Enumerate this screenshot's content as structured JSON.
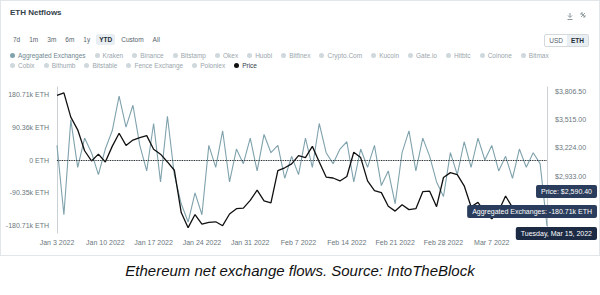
{
  "chart_data": {
    "type": "line",
    "title": "ETH Netflows",
    "range_buttons": [
      "7d",
      "1m",
      "3m",
      "6m",
      "1y",
      "YTD",
      "Custom",
      "All"
    ],
    "range_active": "YTD",
    "units": [
      "USD",
      "ETH"
    ],
    "unit_active": "ETH",
    "other_exchanges": [
      "Kraken",
      "Binance",
      "Bitstamp",
      "Okex",
      "Huobi",
      "Bitfinex",
      "Crypto.Com",
      "Kucoin",
      "Gate.io",
      "Hitbtc",
      "Coinone",
      "Bitmax",
      "Cobix",
      "Bithumb",
      "Bitstable",
      "Fence Exchange",
      "Poloniex"
    ],
    "categories": [
      "Jan 3 2022",
      null,
      null,
      null,
      null,
      null,
      null,
      "Jan 10 2022",
      null,
      null,
      null,
      null,
      null,
      null,
      "Jan 17 2022",
      null,
      null,
      null,
      null,
      null,
      null,
      "Jan 24 2022",
      null,
      null,
      null,
      null,
      null,
      null,
      "Jan 31 2022",
      null,
      null,
      null,
      null,
      null,
      null,
      "Feb 7 2022",
      null,
      null,
      null,
      null,
      null,
      null,
      "Feb 14 2022",
      null,
      null,
      null,
      null,
      null,
      null,
      "Feb 21 2022",
      null,
      null,
      null,
      null,
      null,
      null,
      "Feb 28 2022",
      null,
      null,
      null,
      null,
      null,
      null,
      "Mar 7 2022",
      null,
      null,
      null,
      null,
      null,
      null,
      null,
      null
    ],
    "series": [
      {
        "name": "Aggregated Exchanges",
        "color": "#7fa2ad",
        "values": [
          40000,
          -150000,
          110000,
          -20000,
          60000,
          20000,
          -40000,
          30000,
          80000,
          175000,
          90000,
          150000,
          40000,
          -30000,
          100000,
          -60000,
          120000,
          -40000,
          -120000,
          -170000,
          -90000,
          -150000,
          40000,
          -20000,
          80000,
          -60000,
          30000,
          -10000,
          60000,
          -30000,
          70000,
          20000,
          40000,
          -50000,
          10000,
          -40000,
          60000,
          -20000,
          100000,
          20000,
          -10000,
          30000,
          50000,
          -60000,
          30000,
          -20000,
          40000,
          -70000,
          -30000,
          -120000,
          20000,
          80000,
          -30000,
          60000,
          10000,
          -60000,
          -100000,
          20000,
          -40000,
          50000,
          -20000,
          60000,
          0,
          40000,
          -30000,
          10000,
          -50000,
          30000,
          -20000,
          20000,
          -10000,
          -180710
        ]
      },
      {
        "name": "Price",
        "color": "#111111",
        "axis": "y2",
        "values": [
          3765,
          3790,
          3540,
          3410,
          3195,
          3090,
          3160,
          3080,
          3240,
          3375,
          3250,
          3305,
          3330,
          3350,
          3210,
          3160,
          3080,
          2995,
          2560,
          2405,
          2540,
          2440,
          2460,
          2465,
          2425,
          2545,
          2600,
          2605,
          2685,
          2790,
          2680,
          2660,
          2990,
          3020,
          3060,
          3145,
          3125,
          3240,
          3080,
          2925,
          2915,
          2885,
          2930,
          3180,
          3125,
          2885,
          2785,
          2765,
          2625,
          2575,
          2640,
          2590,
          2600,
          2775,
          2780,
          2620,
          2920,
          2970,
          2950,
          2835,
          2620,
          2665,
          2560,
          2495,
          2575,
          2730,
          2610,
          2560,
          2570,
          2515,
          2590,
          2590.4
        ]
      }
    ],
    "ylim": [
      -200000,
      200000
    ],
    "yticks": [
      {
        "value": 180710,
        "label": "180.71k ETH"
      },
      {
        "value": 90360,
        "label": "90.36k ETH"
      },
      {
        "value": 0,
        "label": "0 ETH"
      },
      {
        "value": -90350,
        "label": "-90.35k ETH"
      },
      {
        "value": -180710,
        "label": "-180.71k ETH"
      }
    ],
    "y2lim": [
      2350,
      3850
    ],
    "y2ticks": [
      {
        "value": 3806.5,
        "label": "$3,806.50"
      },
      {
        "value": 3515,
        "label": "$3,515.00"
      },
      {
        "value": 3224,
        "label": "$3,224.00"
      },
      {
        "value": 2933,
        "label": "$2,933.00"
      }
    ],
    "grid": false,
    "annotations": [
      "Price: $2,590.40",
      "Aggregated Exchanges: -180.71k ETH",
      "Tuesday, Mar 15, 2022"
    ]
  },
  "caption": "Ethereum net exchange flows. Source: IntoTheBlock"
}
